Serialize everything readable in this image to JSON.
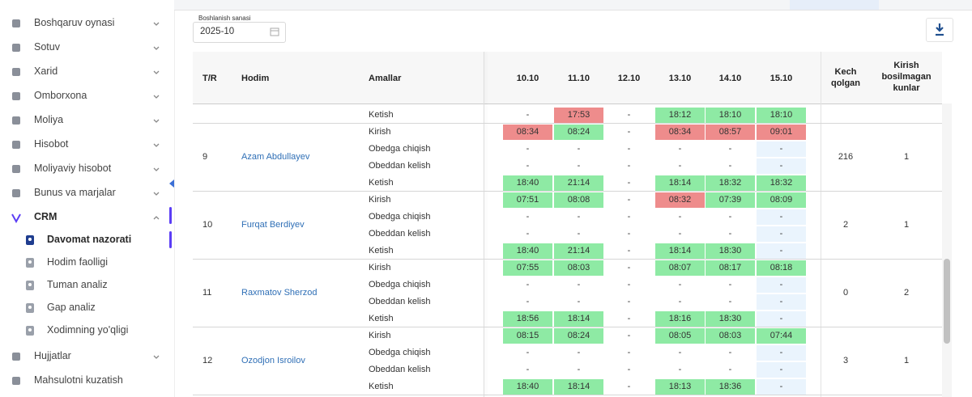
{
  "sidebar": {
    "items": [
      {
        "label": "Boshqaruv oynasi"
      },
      {
        "label": "Sotuv"
      },
      {
        "label": "Xarid"
      },
      {
        "label": "Omborxona"
      },
      {
        "label": "Moliya"
      },
      {
        "label": "Hisobot"
      },
      {
        "label": "Moliyaviy hisobot"
      },
      {
        "label": "Bunus va marjalar"
      },
      {
        "label": "CRM",
        "children": [
          {
            "label": "Davomat nazorati",
            "active": true
          },
          {
            "label": "Hodim faolligi"
          },
          {
            "label": "Tuman analiz"
          },
          {
            "label": "Gap analiz"
          },
          {
            "label": "Xodimning yo'qligi"
          }
        ]
      },
      {
        "label": "Hujjatlar"
      },
      {
        "label": "Mahsulotni kuzatish"
      }
    ]
  },
  "filter": {
    "label": "Boshlanish sanasi",
    "value": "2025-10"
  },
  "table": {
    "columns": [
      "T/R",
      "Hodim",
      "Amallar",
      "10.10",
      "11.10",
      "12.10",
      "13.10",
      "14.10",
      "15.10",
      "Kech qolgan",
      "Kirish bosilmagan kunlar"
    ],
    "partial_row": {
      "action": "Ketish",
      "cells": [
        "-",
        "17:53",
        "-",
        "18:12",
        "18:10",
        "18:10"
      ],
      "colors": [
        null,
        "#ee8c8c",
        null,
        "#8eeaa4",
        "#8eeaa4",
        "#8eeaa4"
      ]
    },
    "rows": [
      {
        "number": 9,
        "name": "Azam Abdullayev",
        "late": 216,
        "missed": 1,
        "actions": [
          {
            "action": "Kirish",
            "cells": [
              "08:34",
              "08:24",
              "-",
              "08:34",
              "08:57",
              "09:01"
            ],
            "colors": [
              "#ee8c8c",
              "#8eeaa4",
              null,
              "#ee8c8c",
              "#ee8c8c",
              "#ee8c8c"
            ]
          },
          {
            "action": "Obedga chiqish",
            "cells": [
              "-",
              "-",
              "-",
              "-",
              "-",
              "-"
            ],
            "colors": [
              null,
              null,
              null,
              null,
              null,
              null
            ]
          },
          {
            "action": "Obeddan kelish",
            "cells": [
              "-",
              "-",
              "-",
              "-",
              "-",
              "-"
            ],
            "colors": [
              null,
              null,
              null,
              null,
              null,
              null
            ]
          },
          {
            "action": "Ketish",
            "cells": [
              "18:40",
              "21:14",
              "-",
              "18:14",
              "18:32",
              "18:32"
            ],
            "colors": [
              "#8eeaa4",
              "#8eeaa4",
              null,
              "#8eeaa4",
              "#8eeaa4",
              "#8eeaa4"
            ]
          }
        ]
      },
      {
        "number": 10,
        "name": "Furqat Berdiyev",
        "late": 2,
        "missed": 1,
        "actions": [
          {
            "action": "Kirish",
            "cells": [
              "07:51",
              "08:08",
              "-",
              "08:32",
              "07:39",
              "08:09"
            ],
            "colors": [
              "#8eeaa4",
              "#8eeaa4",
              null,
              "#ee8c8c",
              "#8eeaa4",
              "#8eeaa4"
            ]
          },
          {
            "action": "Obedga chiqish",
            "cells": [
              "-",
              "-",
              "-",
              "-",
              "-",
              "-"
            ],
            "colors": [
              null,
              null,
              null,
              null,
              null,
              null
            ]
          },
          {
            "action": "Obeddan kelish",
            "cells": [
              "-",
              "-",
              "-",
              "-",
              "-",
              "-"
            ],
            "colors": [
              null,
              null,
              null,
              null,
              null,
              null
            ]
          },
          {
            "action": "Ketish",
            "cells": [
              "18:40",
              "21:14",
              "-",
              "18:14",
              "18:30",
              "-"
            ],
            "colors": [
              "#8eeaa4",
              "#8eeaa4",
              null,
              "#8eeaa4",
              "#8eeaa4",
              null
            ]
          }
        ]
      },
      {
        "number": 11,
        "name": "Raxmatov Sherzod",
        "late": 0,
        "missed": 2,
        "actions": [
          {
            "action": "Kirish",
            "cells": [
              "07:55",
              "08:03",
              "-",
              "08:07",
              "08:17",
              "08:18"
            ],
            "colors": [
              "#8eeaa4",
              "#8eeaa4",
              null,
              "#8eeaa4",
              "#8eeaa4",
              "#8eeaa4"
            ]
          },
          {
            "action": "Obedga chiqish",
            "cells": [
              "-",
              "-",
              "-",
              "-",
              "-",
              "-"
            ],
            "colors": [
              null,
              null,
              null,
              null,
              null,
              null
            ]
          },
          {
            "action": "Obeddan kelish",
            "cells": [
              "-",
              "-",
              "-",
              "-",
              "-",
              "-"
            ],
            "colors": [
              null,
              null,
              null,
              null,
              null,
              null
            ]
          },
          {
            "action": "Ketish",
            "cells": [
              "18:56",
              "18:14",
              "-",
              "18:16",
              "18:30",
              "-"
            ],
            "colors": [
              "#8eeaa4",
              "#8eeaa4",
              null,
              "#8eeaa4",
              "#8eeaa4",
              null
            ]
          }
        ]
      },
      {
        "number": 12,
        "name": "Ozodjon Isroilov",
        "late": 3,
        "missed": 1,
        "actions": [
          {
            "action": "Kirish",
            "cells": [
              "08:15",
              "08:24",
              "-",
              "08:05",
              "08:03",
              "07:44"
            ],
            "colors": [
              "#8eeaa4",
              "#8eeaa4",
              null,
              "#8eeaa4",
              "#8eeaa4",
              "#8eeaa4"
            ]
          },
          {
            "action": "Obedga chiqish",
            "cells": [
              "-",
              "-",
              "-",
              "-",
              "-",
              "-"
            ],
            "colors": [
              null,
              null,
              null,
              null,
              null,
              null
            ]
          },
          {
            "action": "Obeddan kelish",
            "cells": [
              "-",
              "-",
              "-",
              "-",
              "-",
              "-"
            ],
            "colors": [
              null,
              null,
              null,
              null,
              null,
              null
            ]
          },
          {
            "action": "Ketish",
            "cells": [
              "18:40",
              "18:14",
              "-",
              "18:13",
              "18:36",
              "-"
            ],
            "colors": [
              "#8eeaa4",
              "#8eeaa4",
              null,
              "#8eeaa4",
              "#8eeaa4",
              null
            ]
          }
        ]
      }
    ]
  }
}
